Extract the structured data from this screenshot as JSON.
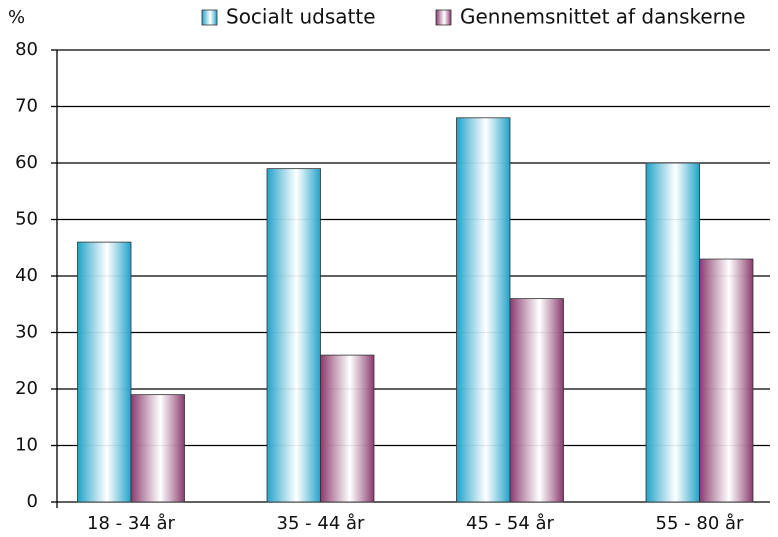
{
  "chart_data": {
    "type": "bar",
    "y_label": "%",
    "categories": [
      "18 - 34 år",
      "35 - 44 år",
      "45 - 54 år",
      "55 - 80 år"
    ],
    "series": [
      {
        "name": "Socialt udsatte",
        "color": "#1fa2c9",
        "values": [
          46,
          59,
          68,
          60
        ]
      },
      {
        "name": "Gennemsnittet af danskerne",
        "color": "#8a3a6d",
        "values": [
          19,
          26,
          36,
          43
        ]
      }
    ],
    "ylim": [
      0,
      80
    ],
    "yticks": [
      0,
      10,
      20,
      30,
      40,
      50,
      60,
      70,
      80
    ],
    "grid": true,
    "legend": "top"
  }
}
